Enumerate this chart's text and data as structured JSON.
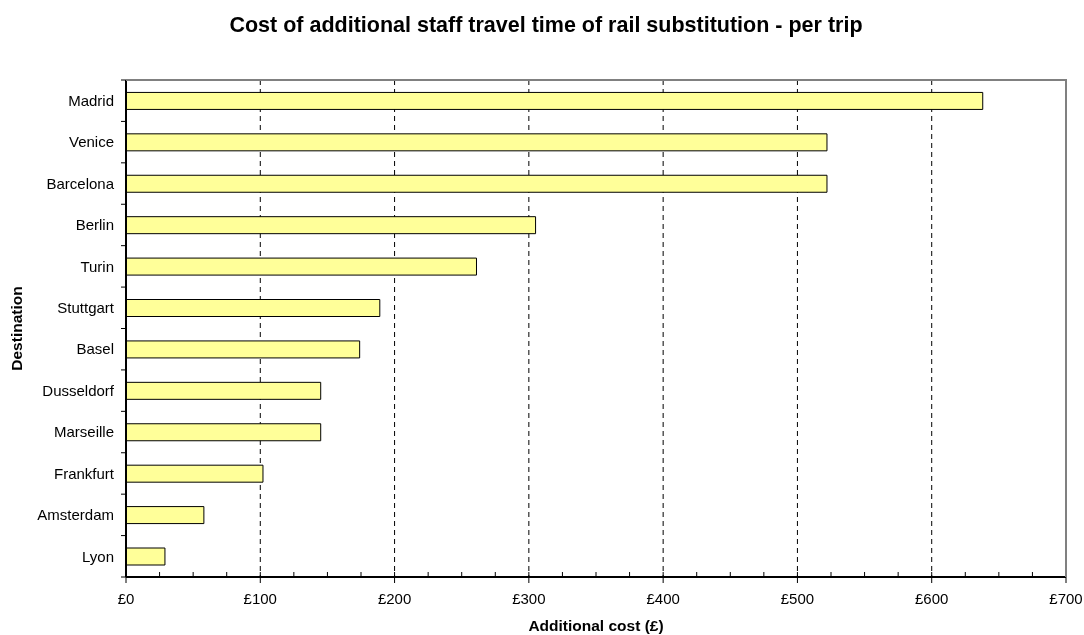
{
  "chart_data": {
    "type": "bar",
    "orientation": "horizontal",
    "title": "Cost of additional staff travel time of rail substitution - per trip",
    "xlabel": "Additional cost (£)",
    "ylabel": "Destination",
    "categories": [
      "Madrid",
      "Venice",
      "Barcelona",
      "Berlin",
      "Turin",
      "Stuttgart",
      "Basel",
      "Dusseldorf",
      "Marseille",
      "Frankfurt",
      "Amsterdam",
      "Lyon"
    ],
    "values": [
      638,
      522,
      522,
      305,
      261,
      189,
      174,
      145,
      145,
      102,
      58,
      29
    ],
    "color": "#ffff99",
    "xlim": [
      0,
      700
    ],
    "xticks": [
      {
        "value": 0,
        "label": "£0"
      },
      {
        "value": 25,
        "label": null
      },
      {
        "value": 50,
        "label": null
      },
      {
        "value": 75,
        "label": null
      },
      {
        "value": 100,
        "label": "£100"
      },
      {
        "value": 125,
        "label": null
      },
      {
        "value": 150,
        "label": null
      },
      {
        "value": 175,
        "label": null
      },
      {
        "value": 200,
        "label": "£200"
      },
      {
        "value": 225,
        "label": null
      },
      {
        "value": 250,
        "label": null
      },
      {
        "value": 275,
        "label": null
      },
      {
        "value": 300,
        "label": "£300"
      },
      {
        "value": 325,
        "label": null
      },
      {
        "value": 350,
        "label": null
      },
      {
        "value": 375,
        "label": null
      },
      {
        "value": 400,
        "label": "£400"
      },
      {
        "value": 425,
        "label": null
      },
      {
        "value": 450,
        "label": null
      },
      {
        "value": 475,
        "label": null
      },
      {
        "value": 500,
        "label": "£500"
      },
      {
        "value": 525,
        "label": null
      },
      {
        "value": 550,
        "label": null
      },
      {
        "value": 575,
        "label": null
      },
      {
        "value": 600,
        "label": "£600"
      },
      {
        "value": 625,
        "label": null
      },
      {
        "value": 650,
        "label": null
      },
      {
        "value": 675,
        "label": null
      },
      {
        "value": 700,
        "label": "£700"
      }
    ],
    "grid": "x"
  }
}
